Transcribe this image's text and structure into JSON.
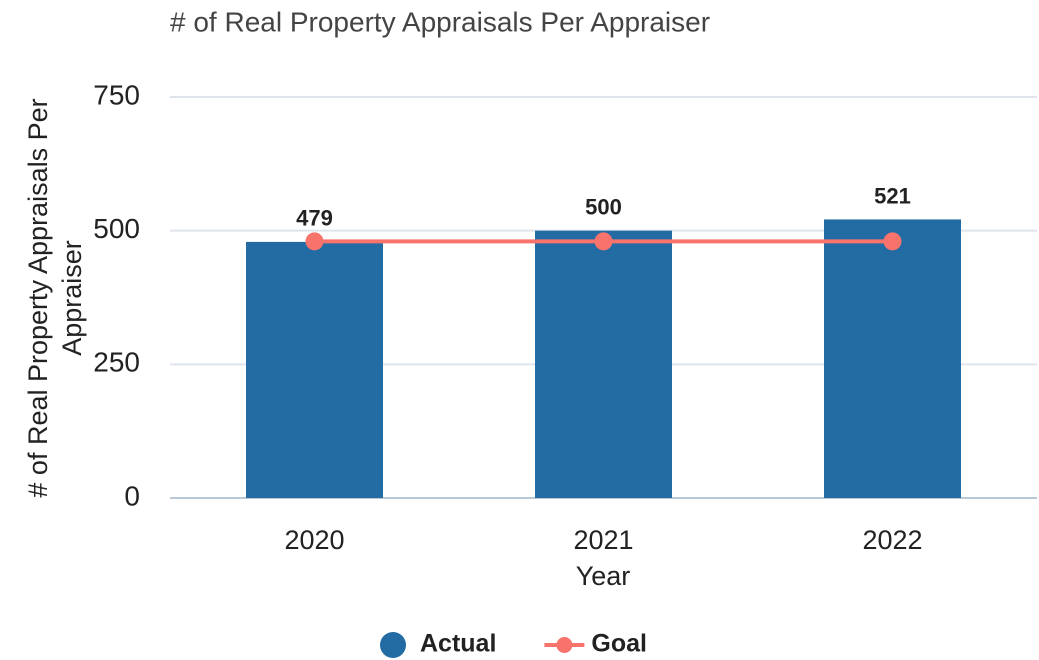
{
  "chart_data": {
    "type": "bar_line",
    "title": "# of Real Property Appraisals Per Appraiser",
    "xlabel": "Year",
    "ylabel": [
      "# of Real Property Appraisals Per",
      "Appraiser"
    ],
    "categories": [
      "2020",
      "2021",
      "2022"
    ],
    "series": [
      {
        "name": "Actual",
        "type": "bar",
        "color": "#236ba3",
        "values": [
          479,
          500,
          521
        ]
      },
      {
        "name": "Goal",
        "type": "line",
        "color": "#f9736d",
        "values": [
          480,
          480,
          480
        ]
      }
    ],
    "ylim": [
      0,
      750
    ],
    "yticks": [
      0,
      250,
      500,
      750
    ],
    "grid": true,
    "legend": "bottom"
  }
}
